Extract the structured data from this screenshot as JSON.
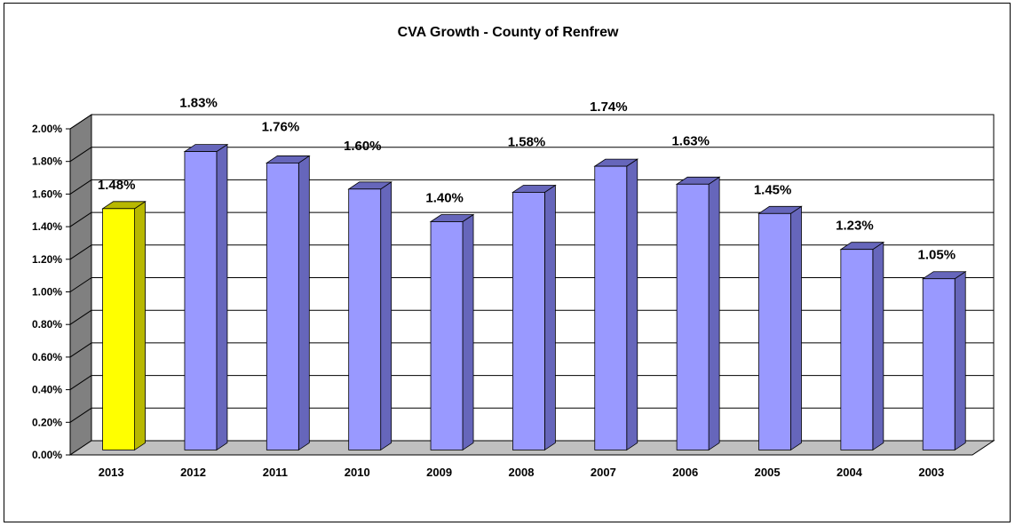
{
  "chart_data": {
    "type": "bar",
    "title": "CVA Growth - County of Renfrew",
    "categories": [
      "2013",
      "2012",
      "2011",
      "2010",
      "2009",
      "2008",
      "2007",
      "2006",
      "2005",
      "2004",
      "2003"
    ],
    "values": [
      1.48,
      1.83,
      1.76,
      1.6,
      1.4,
      1.58,
      1.74,
      1.63,
      1.45,
      1.23,
      1.05
    ],
    "value_labels": [
      "1.48%",
      "1.83%",
      "1.76%",
      "1.60%",
      "1.40%",
      "1.58%",
      "1.74%",
      "1.63%",
      "1.45%",
      "1.23%",
      "1.05%"
    ],
    "y_ticks": [
      0,
      0.2,
      0.4,
      0.6,
      0.8,
      1.0,
      1.2,
      1.4,
      1.6,
      1.8,
      2.0
    ],
    "y_tick_labels": [
      "0.00%",
      "0.20%",
      "0.40%",
      "0.60%",
      "0.80%",
      "1.00%",
      "1.20%",
      "1.40%",
      "1.60%",
      "1.80%",
      "2.00%"
    ],
    "ylim": [
      0,
      2.0
    ],
    "xlabel": "",
    "ylabel": "",
    "grid": true,
    "legend": "none",
    "colors": {
      "highlight": "#ffff00",
      "highlight_side": "#b8b800",
      "bar": "#9999ff",
      "bar_side": "#6666bb",
      "wall": "#ffffff",
      "side_wall": "#808080",
      "floor": "#c0c0c0"
    }
  }
}
